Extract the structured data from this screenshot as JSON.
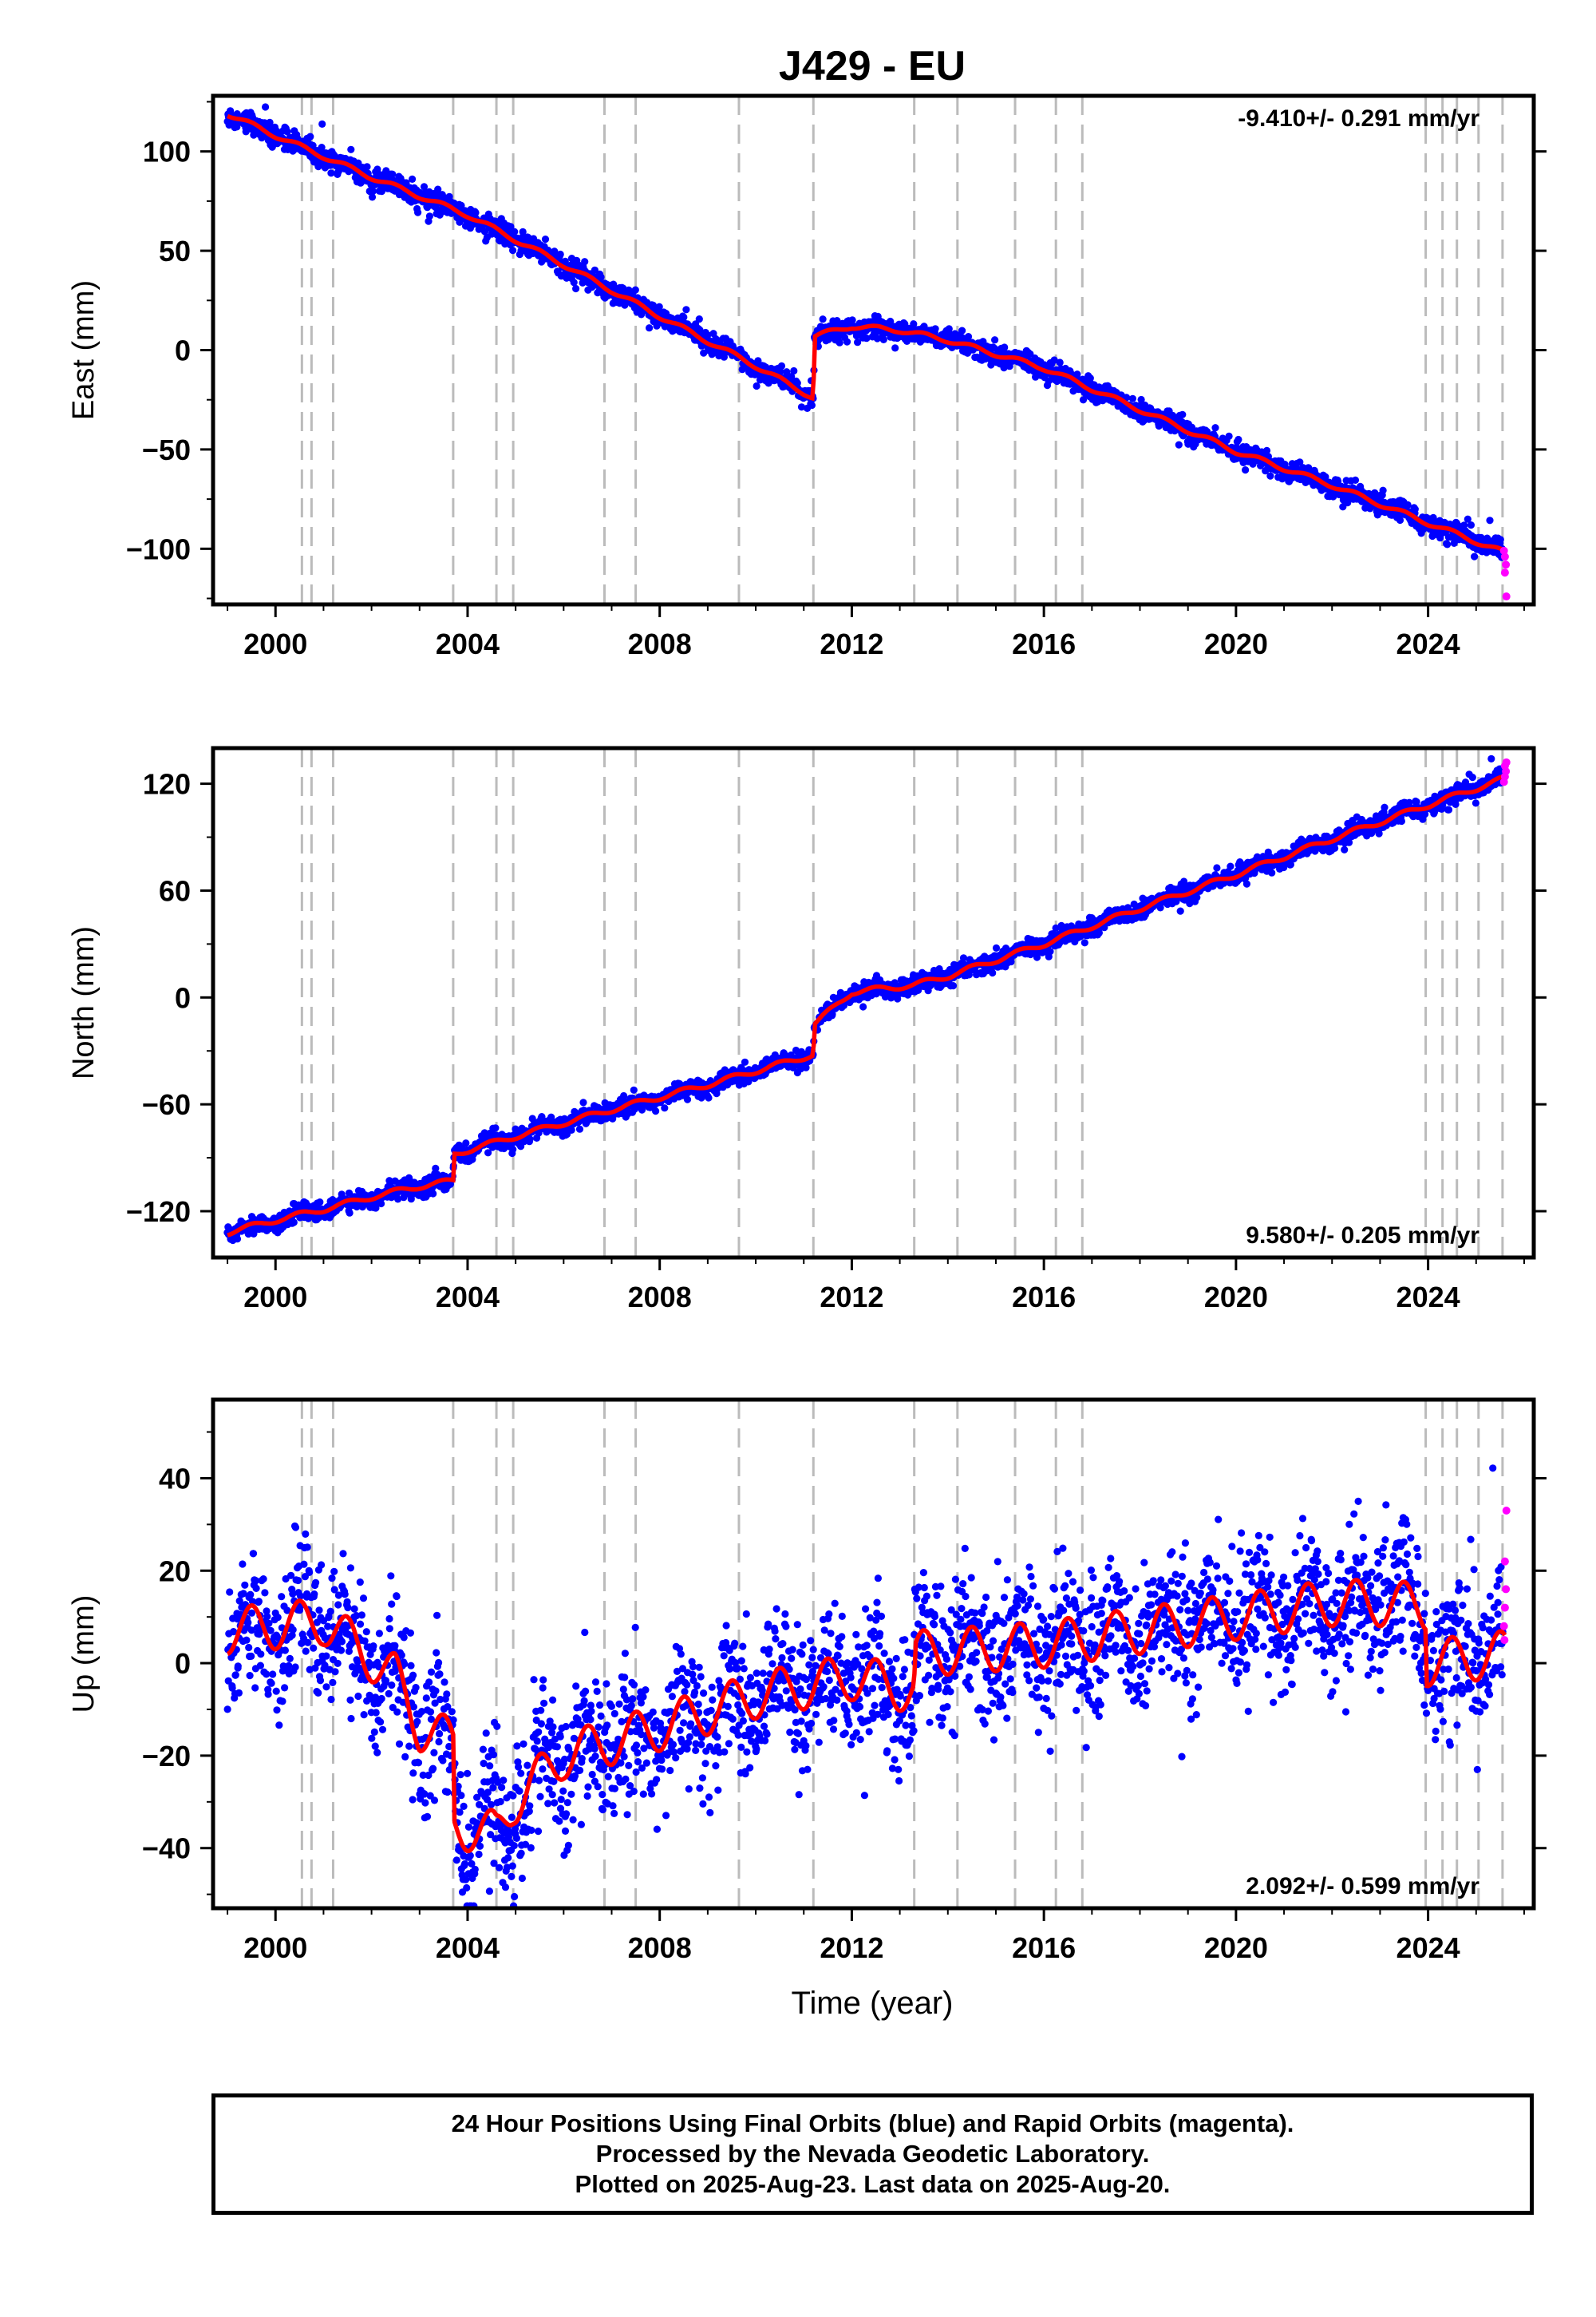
{
  "title": "J429 - EU",
  "xlabel": "Time (year)",
  "x_tick_labels": [
    "2000",
    "2004",
    "2008",
    "2012",
    "2016",
    "2020",
    "2024"
  ],
  "footer": {
    "line1": "24 Hour Positions Using Final Orbits (blue) and Rapid Orbits (magenta).",
    "line2": "Processed by the Nevada Geodetic Laboratory.",
    "line3": "Plotted on 2025-Aug-23. Last data on 2025-Aug-20."
  },
  "colors": {
    "final_orbits": "#0000ff",
    "rapid_orbits": "#ff00ff",
    "model": "#ff0000",
    "event_lines": "#bbbbbb"
  },
  "chart_data": [
    {
      "type": "scatter",
      "component": "east",
      "ylabel": "East (mm)",
      "rate_label": "-9.410+/- 0.291 mm/yr",
      "rate_placement": "top-right",
      "xlim": [
        1998.7,
        2026.2
      ],
      "ylim": [
        -128,
        128
      ],
      "y_ticks": [
        -100,
        -50,
        0,
        50,
        100
      ],
      "y_tick_labels": [
        "−100",
        "−50",
        "0",
        "50",
        "100"
      ],
      "x_ticks": [
        2000,
        2004,
        2008,
        2012,
        2016,
        2020,
        2024
      ],
      "grid": false,
      "event_lines": [
        2000.55,
        2000.75,
        2001.2,
        2003.7,
        2004.6,
        2004.95,
        2006.85,
        2007.5,
        2009.65,
        2011.2,
        2013.3,
        2014.2,
        2015.4,
        2016.25,
        2016.8,
        2023.95,
        2024.3,
        2024.6,
        2025.05,
        2025.55
      ],
      "trend": [
        [
          1999.0,
          119
        ],
        [
          2000.0,
          108
        ],
        [
          2002.0,
          87
        ],
        [
          2004.0,
          68
        ],
        [
          2006.0,
          43
        ],
        [
          2008.0,
          17
        ],
        [
          2010.0,
          -8
        ],
        [
          2011.2,
          -24
        ],
        [
          2011.22,
          7
        ],
        [
          2012.0,
          12
        ],
        [
          2013.0,
          10
        ],
        [
          2014.0,
          5
        ],
        [
          2016.0,
          -9
        ],
        [
          2018.0,
          -30
        ],
        [
          2020.0,
          -51
        ],
        [
          2022.0,
          -68
        ],
        [
          2024.0,
          -87
        ],
        [
          2025.6,
          -102
        ]
      ],
      "series": [
        {
          "name": "Final Orbits",
          "color": "#0000ff",
          "spread": 2.6,
          "x_start": 1999.0,
          "x_end": 2025.55
        },
        {
          "name": "Rapid Orbits",
          "color": "#ff00ff",
          "points": [
            [
              2025.58,
              -101
            ],
            [
              2025.6,
              -104
            ],
            [
              2025.62,
              -108
            ],
            [
              2025.6,
              -112
            ],
            [
              2025.63,
              -124
            ]
          ]
        }
      ],
      "model_line": {
        "color": "#ff0000",
        "seasonal_amp": 1.2
      }
    },
    {
      "type": "scatter",
      "component": "north",
      "ylabel": "North (mm)",
      "rate_label": "9.580+/- 0.205 mm/yr",
      "rate_placement": "bottom-right",
      "xlim": [
        1998.7,
        2026.2
      ],
      "ylim": [
        -146,
        140
      ],
      "y_ticks": [
        -120,
        -60,
        0,
        60,
        120
      ],
      "y_tick_labels": [
        "−120",
        "−60",
        "0",
        "60",
        "120"
      ],
      "x_ticks": [
        2000,
        2004,
        2008,
        2012,
        2016,
        2020,
        2024
      ],
      "grid": false,
      "event_lines": [
        2000.55,
        2000.75,
        2001.2,
        2003.7,
        2004.6,
        2004.95,
        2006.85,
        2007.5,
        2009.65,
        2011.2,
        2013.3,
        2014.2,
        2015.4,
        2016.25,
        2016.8,
        2023.95,
        2024.3,
        2024.6,
        2025.05,
        2025.55
      ],
      "trend": [
        [
          1999.0,
          -132
        ],
        [
          2000.0,
          -125
        ],
        [
          2001.0,
          -119
        ],
        [
          2002.0,
          -112
        ],
        [
          2003.0,
          -106
        ],
        [
          2003.7,
          -103
        ],
        [
          2003.72,
          -88
        ],
        [
          2005.0,
          -78
        ],
        [
          2007.0,
          -63
        ],
        [
          2009.0,
          -49
        ],
        [
          2011.2,
          -32
        ],
        [
          2011.22,
          -15
        ],
        [
          2012.0,
          3
        ],
        [
          2013.3,
          7
        ],
        [
          2014.0,
          12
        ],
        [
          2016.0,
          30
        ],
        [
          2018.0,
          50
        ],
        [
          2020.0,
          69
        ],
        [
          2022.0,
          89
        ],
        [
          2024.0,
          108
        ],
        [
          2025.6,
          123
        ]
      ],
      "series": [
        {
          "name": "Final Orbits",
          "color": "#0000ff",
          "spread": 2.6,
          "x_start": 1999.0,
          "x_end": 2025.55
        },
        {
          "name": "Rapid Orbits",
          "color": "#ff00ff",
          "points": [
            [
              2025.58,
              121
            ],
            [
              2025.6,
              124
            ],
            [
              2025.62,
              127
            ],
            [
              2025.6,
              130
            ],
            [
              2025.63,
              132
            ]
          ]
        }
      ],
      "model_line": {
        "color": "#ff0000",
        "seasonal_amp": 1.5
      }
    },
    {
      "type": "scatter",
      "component": "up",
      "ylabel": "Up (mm)",
      "rate_label": "2.092+/- 0.599 mm/yr",
      "rate_placement": "bottom-right",
      "xlim": [
        1998.7,
        2026.2
      ],
      "ylim": [
        -53,
        57
      ],
      "y_ticks": [
        -40,
        -20,
        0,
        20,
        40
      ],
      "y_tick_labels": [
        "−40",
        "−20",
        "0",
        "20",
        "40"
      ],
      "x_ticks": [
        2000,
        2004,
        2008,
        2012,
        2016,
        2020,
        2024
      ],
      "grid": false,
      "event_lines": [
        2000.55,
        2000.75,
        2001.2,
        2003.7,
        2004.6,
        2004.95,
        2006.85,
        2007.5,
        2009.65,
        2011.2,
        2013.3,
        2014.2,
        2015.4,
        2016.25,
        2016.8,
        2023.95,
        2024.3,
        2024.6,
        2025.05,
        2025.55
      ],
      "trend": [
        [
          1999.0,
          7
        ],
        [
          2001.0,
          9
        ],
        [
          2002.5,
          -3
        ],
        [
          2003.0,
          -14
        ],
        [
          2003.7,
          -17
        ],
        [
          2003.72,
          -35
        ],
        [
          2004.6,
          -37
        ],
        [
          2004.95,
          -30
        ],
        [
          2006.0,
          -20
        ],
        [
          2008.0,
          -14
        ],
        [
          2010.0,
          -7
        ],
        [
          2012.0,
          -3
        ],
        [
          2013.3,
          -6
        ],
        [
          2013.32,
          2
        ],
        [
          2016.0,
          4
        ],
        [
          2018.0,
          7
        ],
        [
          2020.0,
          10
        ],
        [
          2022.0,
          13
        ],
        [
          2023.2,
          13
        ],
        [
          2023.95,
          12
        ],
        [
          2023.97,
          0
        ],
        [
          2025.6,
          2
        ]
      ],
      "series": [
        {
          "name": "Final Orbits",
          "color": "#0000ff",
          "spread": 7.5,
          "x_start": 1999.0,
          "x_end": 2025.55
        },
        {
          "name": "Rapid Orbits",
          "color": "#ff00ff",
          "points": [
            [
              2025.58,
              8
            ],
            [
              2025.6,
              12
            ],
            [
              2025.62,
              16
            ],
            [
              2025.6,
              22
            ],
            [
              2025.63,
              33
            ],
            [
              2025.59,
              5
            ]
          ]
        }
      ],
      "model_line": {
        "color": "#ff0000",
        "seasonal_amp": 5
      }
    }
  ]
}
